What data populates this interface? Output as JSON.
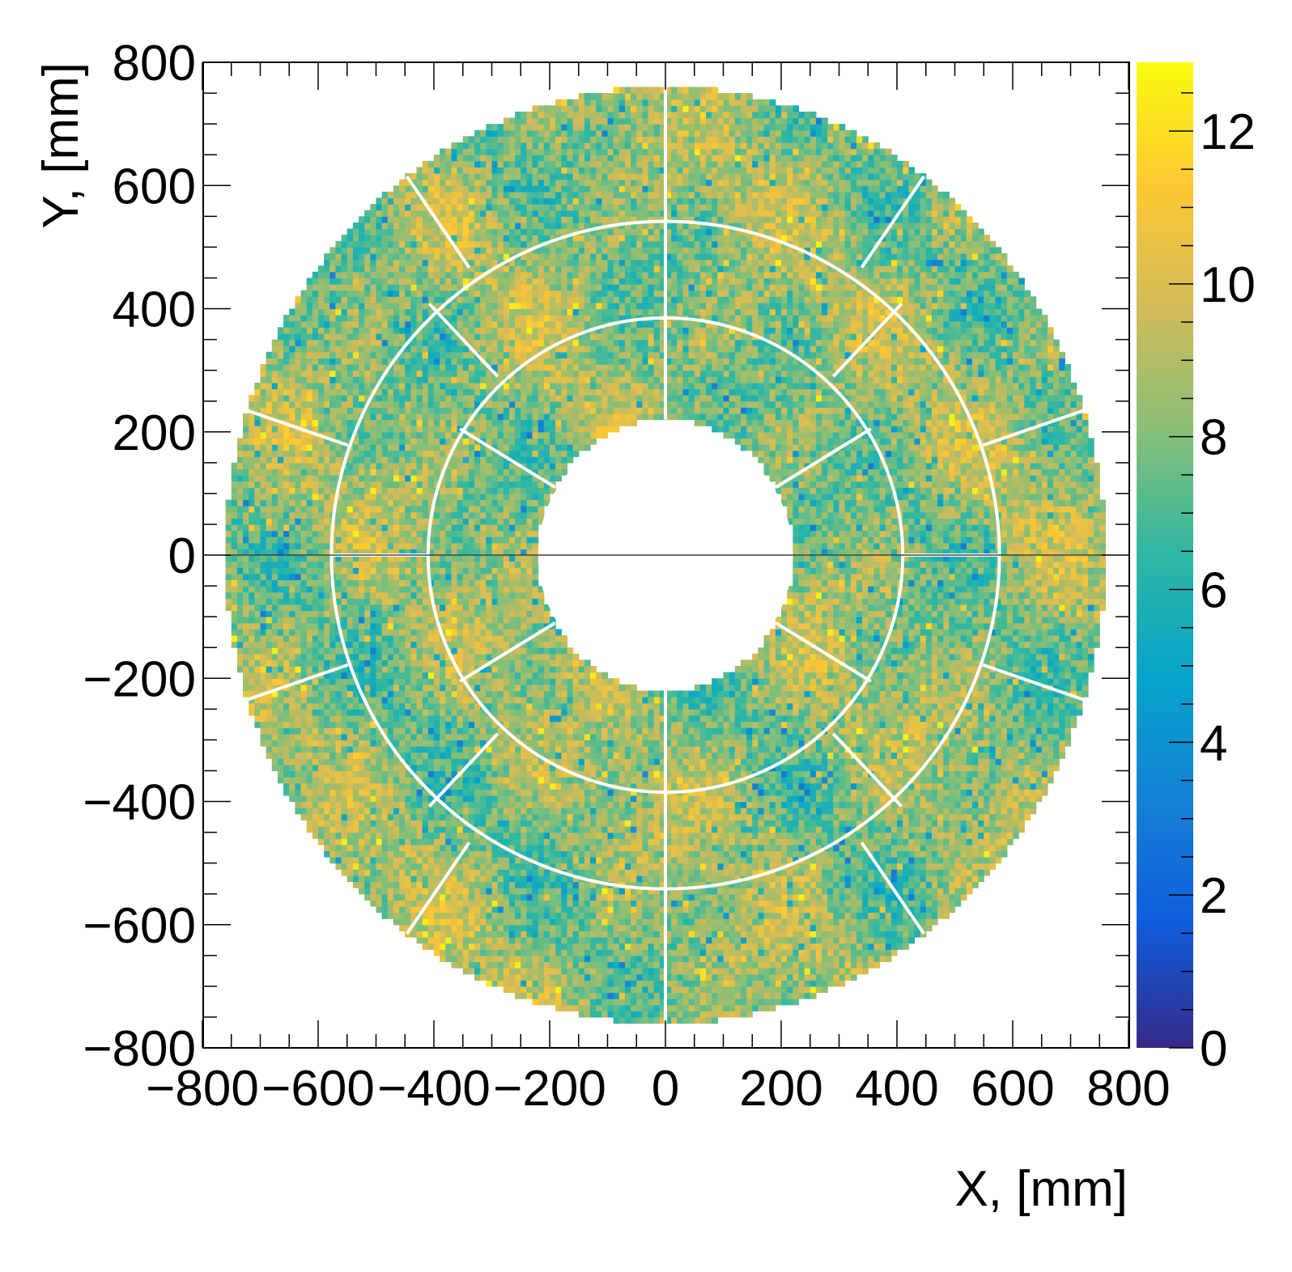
{
  "chart_data": {
    "type": "heatmap",
    "subtype": "polar-segmented-occupancy-map",
    "title": "",
    "xlabel": "X, [mm]",
    "ylabel": "Y, [mm]",
    "xlim": [
      -800,
      800
    ],
    "ylim": [
      -800,
      800
    ],
    "xticks": [
      -800,
      -600,
      -400,
      -200,
      0,
      200,
      400,
      600,
      800
    ],
    "yticks": [
      -800,
      -600,
      -400,
      -200,
      0,
      200,
      400,
      600,
      800
    ],
    "xtick_labels": [
      "−800",
      "−600",
      "−400",
      "−200",
      "0",
      "200",
      "400",
      "600",
      "800"
    ],
    "ytick_labels": [
      "−800",
      "−600",
      "−400",
      "−200",
      "0",
      "200",
      "400",
      "600",
      "800"
    ],
    "colorbar": {
      "zlim": [
        0,
        12.9
      ],
      "ticks": [
        0,
        2,
        4,
        6,
        8,
        10,
        12
      ],
      "tick_labels": [
        "0",
        "2",
        "4",
        "6",
        "8",
        "10",
        "12"
      ],
      "colormap": "parula"
    },
    "geometry": {
      "inner_radius_mm": 220,
      "outer_radius_mm": 760,
      "ring_boundaries_mm": [
        220,
        410,
        577,
        760
      ],
      "sectors_per_ring": [
        6,
        8,
        10
      ],
      "cell_size_mm": 10
    },
    "value_distribution": {
      "typical_mean": 8.3,
      "typical_min": 3,
      "typical_max": 12.5
    },
    "grid": false,
    "legend": "none"
  },
  "colors": {
    "colormap_stops": [
      "#352a87",
      "#0f5cdd",
      "#1481d6",
      "#06a4ca",
      "#2eb7a4",
      "#87bf77",
      "#d1bb59",
      "#fec832",
      "#f9fb0e"
    ],
    "separator": "#ffffff",
    "axes": "#000000"
  }
}
